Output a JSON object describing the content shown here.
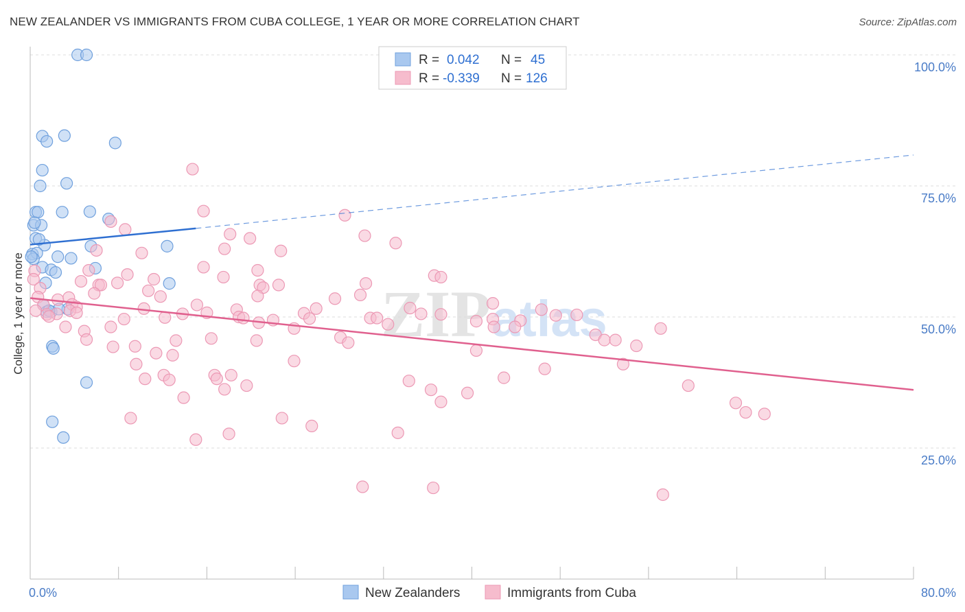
{
  "title": "NEW ZEALANDER VS IMMIGRANTS FROM CUBA COLLEGE, 1 YEAR OR MORE CORRELATION CHART",
  "source": "Source: ZipAtlas.com",
  "watermark": {
    "zip": "ZIP",
    "atlas": "atlas"
  },
  "colors": {
    "blue_fill": "#a9c8ef",
    "blue_stroke": "#6fa0dd",
    "blue_line": "#2e6fd1",
    "pink_fill": "#f6bccd",
    "pink_stroke": "#ec98b4",
    "pink_line": "#e0608e",
    "axis_label": "#4a7cc7",
    "grid": "#dddddd"
  },
  "legend_box": {
    "rows": [
      {
        "r_label": "R =",
        "r_value": "0.042",
        "n_label": "N =",
        "n_value": "45"
      },
      {
        "r_label": "R =",
        "r_value": "-0.339",
        "n_label": "N =",
        "n_value": "126"
      }
    ]
  },
  "bottom_legend": [
    "New Zealanders",
    "Immigrants from Cuba"
  ],
  "chart_data": {
    "type": "scatter",
    "xlabel": "",
    "ylabel": "College, 1 year or more",
    "xlim": [
      0,
      80
    ],
    "ylim": [
      0,
      100
    ],
    "x_tick_labels": [
      "0.0%",
      "80.0%"
    ],
    "y_ticks": [
      25,
      50,
      75,
      100
    ],
    "y_tick_labels": [
      "25.0%",
      "50.0%",
      "75.0%",
      "100.0%"
    ],
    "grid": true,
    "series": [
      {
        "name": "New Zealanders",
        "r": 0.042,
        "n": 45,
        "trend": {
          "x0": 0,
          "y0": 63.8,
          "x_solid_end": 15,
          "y_solid_end": 66.9,
          "x1": 80,
          "y1": 80.9
        },
        "points": [
          [
            4.3,
            100
          ],
          [
            5.1,
            100
          ],
          [
            1.1,
            84.5
          ],
          [
            3.1,
            84.6
          ],
          [
            1.5,
            83.5
          ],
          [
            7.7,
            83.2
          ],
          [
            1.1,
            78
          ],
          [
            0.9,
            75
          ],
          [
            3.3,
            75.5
          ],
          [
            0.5,
            70
          ],
          [
            0.7,
            70
          ],
          [
            2.9,
            70
          ],
          [
            5.4,
            70.1
          ],
          [
            7.1,
            68.7
          ],
          [
            0.3,
            67.5
          ],
          [
            1.0,
            67.5
          ],
          [
            0.5,
            65
          ],
          [
            1.3,
            63.7
          ],
          [
            5.5,
            63.5
          ],
          [
            12.4,
            63.5
          ],
          [
            0.2,
            62
          ],
          [
            0.6,
            62.2
          ],
          [
            0.3,
            61.1
          ],
          [
            2.5,
            61.5
          ],
          [
            3.7,
            61.2
          ],
          [
            1.1,
            59.5
          ],
          [
            1.9,
            59
          ],
          [
            5.9,
            59.3
          ],
          [
            2.3,
            58.5
          ],
          [
            1.4,
            56.5
          ],
          [
            12.6,
            56.4
          ],
          [
            1.2,
            52.3
          ],
          [
            1.5,
            51
          ],
          [
            1.9,
            51
          ],
          [
            3.4,
            51.5
          ],
          [
            2.0,
            44.4
          ],
          [
            2.1,
            44
          ],
          [
            5.1,
            37.5
          ],
          [
            2.0,
            30
          ],
          [
            3.0,
            27
          ],
          [
            0.1,
            61.5
          ],
          [
            0.4,
            68
          ],
          [
            0.8,
            64.8
          ],
          [
            2.6,
            51.5
          ],
          [
            1.7,
            51.2
          ]
        ]
      },
      {
        "name": "Immigrants from Cuba",
        "r": -0.339,
        "n": 126,
        "trend": {
          "x0": 0,
          "y0": 53.6,
          "x1": 80,
          "y1": 36.1
        },
        "points": [
          [
            14.7,
            78.2
          ],
          [
            15.7,
            70.2
          ],
          [
            28.5,
            69.4
          ],
          [
            8.6,
            66.7
          ],
          [
            7.3,
            68.2
          ],
          [
            18.1,
            65.8
          ],
          [
            19.9,
            65
          ],
          [
            30.3,
            65.5
          ],
          [
            33.1,
            64.1
          ],
          [
            6.0,
            62.7
          ],
          [
            17.6,
            63
          ],
          [
            10.1,
            62.2
          ],
          [
            20.6,
            58.9
          ],
          [
            22.7,
            62.6
          ],
          [
            36.6,
            57.9
          ],
          [
            37.2,
            57.6
          ],
          [
            15.7,
            59.5
          ],
          [
            8.8,
            58.1
          ],
          [
            5.3,
            58.9
          ],
          [
            17.5,
            57.6
          ],
          [
            0.4,
            58.8
          ],
          [
            0.3,
            57.2
          ],
          [
            4.6,
            56.8
          ],
          [
            6.2,
            56.1
          ],
          [
            6.4,
            56.1
          ],
          [
            7.9,
            56.5
          ],
          [
            11.2,
            57.2
          ],
          [
            20.8,
            56.1
          ],
          [
            22.5,
            56.1
          ],
          [
            30.4,
            56.4
          ],
          [
            0.9,
            55.5
          ],
          [
            5.8,
            54.5
          ],
          [
            10.7,
            55
          ],
          [
            21.1,
            55.6
          ],
          [
            11.8,
            53.9
          ],
          [
            20.6,
            54
          ],
          [
            29.9,
            54.2
          ],
          [
            27.6,
            53.5
          ],
          [
            0.7,
            53.8
          ],
          [
            2.5,
            53.3
          ],
          [
            3.5,
            53.7
          ],
          [
            1.2,
            52.3
          ],
          [
            3.8,
            52.4
          ],
          [
            4.2,
            51.9
          ],
          [
            10.3,
            51.6
          ],
          [
            15.1,
            52.3
          ],
          [
            18.7,
            51.4
          ],
          [
            25.9,
            51.6
          ],
          [
            34.4,
            51.7
          ],
          [
            37.2,
            50.5
          ],
          [
            41.9,
            52.6
          ],
          [
            46.3,
            51.4
          ],
          [
            0.5,
            51.2
          ],
          [
            1.5,
            50.5
          ],
          [
            2.4,
            50.6
          ],
          [
            3.6,
            51.2
          ],
          [
            4.2,
            50.8
          ],
          [
            12.2,
            49.9
          ],
          [
            13.8,
            50.6
          ],
          [
            16.0,
            50.8
          ],
          [
            18.9,
            50
          ],
          [
            22.0,
            49.4
          ],
          [
            24.8,
            50.7
          ],
          [
            30.8,
            49.8
          ],
          [
            31.4,
            49.8
          ],
          [
            35.4,
            50.6
          ],
          [
            41.9,
            49.6
          ],
          [
            40.4,
            49.2
          ],
          [
            44.4,
            49.3
          ],
          [
            47.6,
            50.3
          ],
          [
            49.5,
            50.4
          ],
          [
            1.7,
            50.1
          ],
          [
            8.5,
            49.6
          ],
          [
            19.3,
            49.8
          ],
          [
            20.7,
            48.9
          ],
          [
            25.3,
            49.7
          ],
          [
            42.0,
            48.1
          ],
          [
            43.9,
            48.1
          ],
          [
            57.1,
            47.8
          ],
          [
            32.4,
            48.6
          ],
          [
            7.3,
            48.1
          ],
          [
            3.2,
            48.1
          ],
          [
            23.9,
            47.8
          ],
          [
            4.9,
            47.3
          ],
          [
            51.2,
            46.6
          ],
          [
            28.1,
            46.1
          ],
          [
            16.4,
            45.9
          ],
          [
            5.1,
            45.7
          ],
          [
            13.2,
            45.5
          ],
          [
            20.5,
            45.5
          ],
          [
            28.8,
            45.1
          ],
          [
            52.0,
            45.6
          ],
          [
            53.0,
            45.6
          ],
          [
            7.5,
            44.3
          ],
          [
            9.5,
            44.4
          ],
          [
            54.9,
            44.5
          ],
          [
            40.4,
            43.6
          ],
          [
            11.4,
            43.1
          ],
          [
            12.9,
            42.7
          ],
          [
            23.9,
            41.6
          ],
          [
            9.6,
            41
          ],
          [
            53.7,
            41
          ],
          [
            46.6,
            40.1
          ],
          [
            12.1,
            38.9
          ],
          [
            16.7,
            38.9
          ],
          [
            18.2,
            38.9
          ],
          [
            10.4,
            38.2
          ],
          [
            12.6,
            38
          ],
          [
            16.9,
            38.2
          ],
          [
            34.3,
            37.8
          ],
          [
            42.9,
            38.4
          ],
          [
            19.6,
            36.9
          ],
          [
            59.6,
            36.9
          ],
          [
            17.6,
            36.2
          ],
          [
            36.3,
            36.1
          ],
          [
            39.6,
            35.5
          ],
          [
            13.9,
            34.6
          ],
          [
            37.2,
            33.8
          ],
          [
            63.9,
            33.6
          ],
          [
            64.8,
            31.8
          ],
          [
            66.5,
            31.5
          ],
          [
            9.1,
            30.7
          ],
          [
            22.8,
            30.7
          ],
          [
            25.5,
            29.2
          ],
          [
            33.3,
            27.9
          ],
          [
            18.0,
            27.7
          ],
          [
            15.0,
            26.6
          ],
          [
            30.1,
            17.6
          ],
          [
            36.5,
            17.4
          ],
          [
            57.3,
            16.1
          ]
        ]
      }
    ]
  }
}
